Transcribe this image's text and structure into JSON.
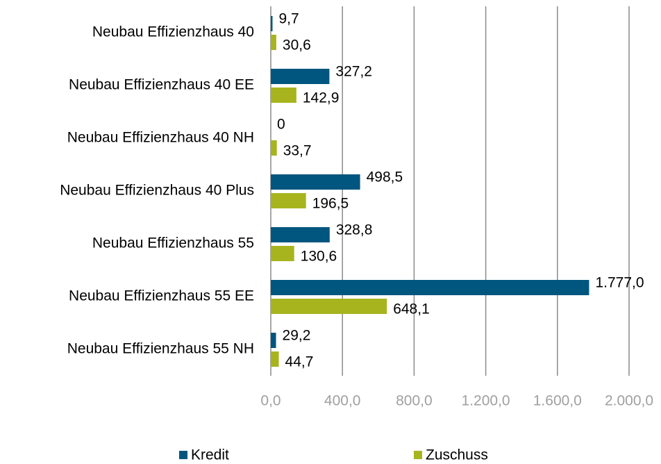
{
  "chart_data": {
    "type": "hbar",
    "categories": [
      "Neubau Effizienzhaus 40",
      "Neubau Effizienzhaus 40 EE",
      "Neubau Effizienzhaus 40 NH",
      "Neubau Effizienzhaus 40 Plus",
      "Neubau Effizienzhaus 55",
      "Neubau Effizienzhaus 55 EE",
      "Neubau Effizienzhaus 55 NH"
    ],
    "series": [
      {
        "name": "Kredit",
        "color": "#00567f",
        "values": [
          9.7,
          327.2,
          0,
          498.5,
          328.8,
          1777.0,
          29.2
        ],
        "value_labels": [
          "9,7",
          "327,2",
          "0",
          "498,5",
          "328,8",
          "1.777,0",
          "29,2"
        ]
      },
      {
        "name": "Zuschuss",
        "color": "#a7b41e",
        "values": [
          30.6,
          142.9,
          33.7,
          196.5,
          130.6,
          648.1,
          44.7
        ],
        "value_labels": [
          "30,6",
          "142,9",
          "33,7",
          "196,5",
          "130,6",
          "648,1",
          "44,7"
        ]
      }
    ],
    "xlim": [
      0,
      2000
    ],
    "xticks": [
      {
        "value": 0,
        "label": "0,0"
      },
      {
        "value": 400,
        "label": "400,0"
      },
      {
        "value": 800,
        "label": "800,0"
      },
      {
        "value": 1200,
        "label": "1.200,0"
      },
      {
        "value": 1600,
        "label": "1.600,0"
      },
      {
        "value": 2000,
        "label": "2.000,0"
      }
    ],
    "grid": true,
    "legend": "bottom"
  }
}
